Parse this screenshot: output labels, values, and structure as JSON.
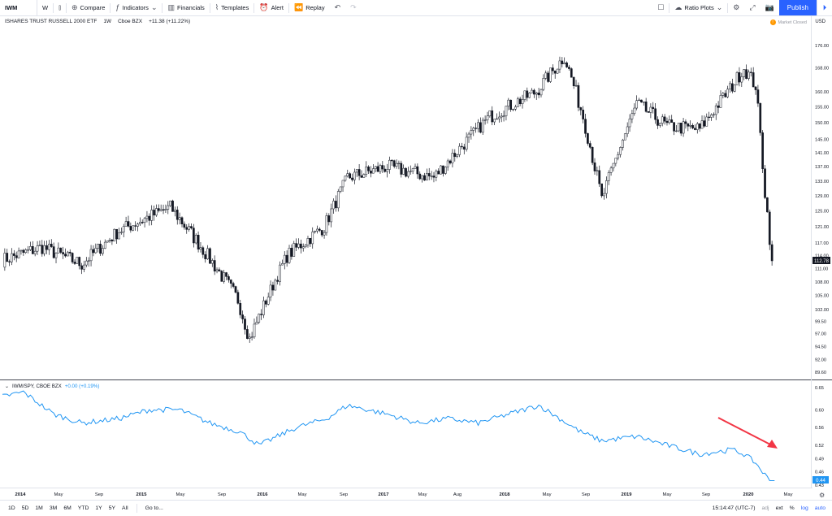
{
  "toolbar": {
    "symbol": "IWM",
    "interval": "W",
    "compare": "Compare",
    "indicators": "Indicators",
    "financials": "Financials",
    "templates": "Templates",
    "alert": "Alert",
    "replay": "Replay",
    "ratio_plots": "Ratio Plots",
    "publish": "Publish"
  },
  "main_legend": {
    "name": "ISHARES TRUST RUSSELL 2000 ETF",
    "interval": "1W",
    "exchange": "Cboe BZX",
    "change": "+11.38 (+11.22%)",
    "market_status": "Market Closed",
    "currency": "USD"
  },
  "sub_legend": {
    "name": "IWM/SPY, CBOE BZX",
    "change": "+0.00 (+0.19%)"
  },
  "price_axis": [
    "176.00",
    "168.00",
    "160.00",
    "155.00",
    "150.00",
    "145.00",
    "141.00",
    "137.00",
    "133.00",
    "129.00",
    "125.00",
    "121.00",
    "117.00",
    "114.00",
    "111.00",
    "108.00",
    "105.00",
    "102.00",
    "99.50",
    "97.00",
    "94.50",
    "92.00",
    "89.60"
  ],
  "current_price": "112.78",
  "ratio_axis": [
    "0.65",
    "0.60",
    "0.56",
    "0.52",
    "0.49",
    "0.46",
    "0.43"
  ],
  "current_ratio": "0.44",
  "time_axis": [
    "2014",
    "May",
    "Sep",
    "2015",
    "May",
    "Sep",
    "2016",
    "May",
    "Sep",
    "2017",
    "May",
    "Aug",
    "2018",
    "May",
    "Sep",
    "2019",
    "May",
    "Sep",
    "2020",
    "May"
  ],
  "bottom": {
    "ranges": [
      "1D",
      "5D",
      "1M",
      "3M",
      "6M",
      "YTD",
      "1Y",
      "5Y",
      "All"
    ],
    "goto": "Go to...",
    "time": "15:14:47 (UTC-7)",
    "adj": "adj",
    "ext": "ext",
    "pct": "%",
    "log": "log",
    "auto": "auto"
  },
  "colors": {
    "ratio_line": "#2196f3",
    "arrow": "#f23645",
    "accent": "#2962ff"
  },
  "chart_data": [
    {
      "type": "candlestick",
      "title": "ISHARES TRUST RUSSELL 2000 ETF",
      "x": [
        "2014-01",
        "2014-05",
        "2014-09",
        "2015-01",
        "2015-06",
        "2015-09",
        "2016-01",
        "2016-02",
        "2016-06",
        "2016-09",
        "2016-11",
        "2017-03",
        "2017-08",
        "2018-01",
        "2018-05",
        "2018-08",
        "2018-10",
        "2018-12",
        "2019-03",
        "2019-06",
        "2019-09",
        "2019-12",
        "2020-01",
        "2020-02",
        "2020-03",
        "2020-03-20"
      ],
      "y": [
        113,
        116,
        112,
        120,
        126,
        117,
        104,
        96,
        114,
        121,
        134,
        137,
        134,
        152,
        160,
        172,
        152,
        128,
        156,
        149,
        148,
        162,
        168,
        162,
        130,
        112.78
      ],
      "ylim": [
        89.6,
        176
      ]
    },
    {
      "type": "line",
      "series": [
        {
          "name": "IWM/SPY, CBOE BZX",
          "x": [
            "2014-01",
            "2014-03",
            "2014-06",
            "2014-09",
            "2014-12",
            "2015-03",
            "2015-06",
            "2015-09",
            "2015-12",
            "2016-02",
            "2016-06",
            "2016-09",
            "2016-11",
            "2017-03",
            "2017-06",
            "2017-09",
            "2017-12",
            "2018-03",
            "2018-06",
            "2018-08",
            "2018-10",
            "2018-12",
            "2019-03",
            "2019-06",
            "2019-09",
            "2019-12",
            "2020-01",
            "2020-02",
            "2020-03"
          ],
          "values": [
            0.63,
            0.64,
            0.59,
            0.57,
            0.58,
            0.6,
            0.6,
            0.57,
            0.55,
            0.52,
            0.56,
            0.58,
            0.61,
            0.59,
            0.57,
            0.58,
            0.57,
            0.59,
            0.61,
            0.58,
            0.55,
            0.53,
            0.54,
            0.52,
            0.5,
            0.51,
            0.5,
            0.48,
            0.44
          ]
        }
      ],
      "ylim": [
        0.43,
        0.65
      ]
    }
  ]
}
